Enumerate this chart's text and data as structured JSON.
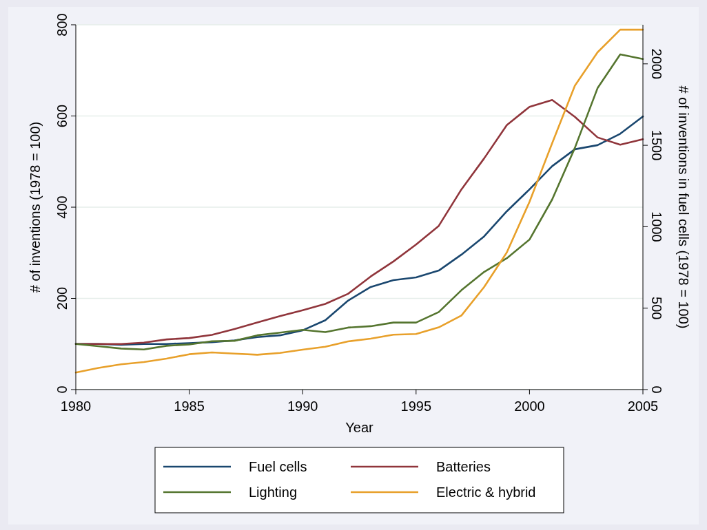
{
  "chart_data": {
    "type": "line",
    "xlabel": "Year",
    "ylabel": "# of inventions (1978 = 100)",
    "y2label": "# of inventions in fuel cells (1978 = 100)",
    "x": [
      1980,
      1981,
      1982,
      1983,
      1984,
      1985,
      1986,
      1987,
      1988,
      1989,
      1990,
      1991,
      1992,
      1993,
      1994,
      1995,
      1996,
      1997,
      1998,
      1999,
      2000,
      2001,
      2002,
      2003,
      2004,
      2005
    ],
    "xlim": [
      1980,
      2005
    ],
    "xticks": [
      1980,
      1985,
      1990,
      1995,
      2000,
      2005
    ],
    "ylim": [
      0,
      800
    ],
    "yticks": [
      0,
      200,
      400,
      600,
      800
    ],
    "y2lim": [
      0,
      2240
    ],
    "y2ticks": [
      0,
      500,
      1000,
      1500,
      2000
    ],
    "grid": "y",
    "legend": "bottom",
    "series": [
      {
        "name": "Fuel cells",
        "color": "#1a476f",
        "values": [
          100,
          100,
          98,
          100,
          100,
          102,
          104,
          108,
          115,
          119,
          130,
          152,
          195,
          225,
          240,
          246,
          261,
          296,
          336,
          391,
          439,
          490,
          527,
          536,
          561,
          599
        ]
      },
      {
        "name": "Batteries",
        "color": "#90353b",
        "values": [
          100,
          100,
          100,
          103,
          110,
          113,
          120,
          133,
          147,
          161,
          174,
          188,
          210,
          248,
          281,
          318,
          359,
          439,
          507,
          580,
          620,
          635,
          598,
          553,
          537,
          549
        ]
      },
      {
        "name": "Lighting",
        "color": "#55752f",
        "values": [
          100,
          95,
          90,
          88,
          96,
          99,
          106,
          107,
          119,
          125,
          131,
          126,
          136,
          139,
          147,
          147,
          170,
          218,
          258,
          288,
          329,
          417,
          530,
          661,
          735,
          725
        ]
      },
      {
        "name": "Electric & hybrid",
        "color": "#e8a02a",
        "axis": "y2",
        "values": [
          105,
          133,
          155,
          169,
          190,
          217,
          228,
          221,
          214,
          225,
          245,
          263,
          296,
          313,
          337,
          341,
          382,
          455,
          630,
          842,
          1153,
          1513,
          1866,
          2071,
          2210,
          2210
        ]
      }
    ]
  }
}
